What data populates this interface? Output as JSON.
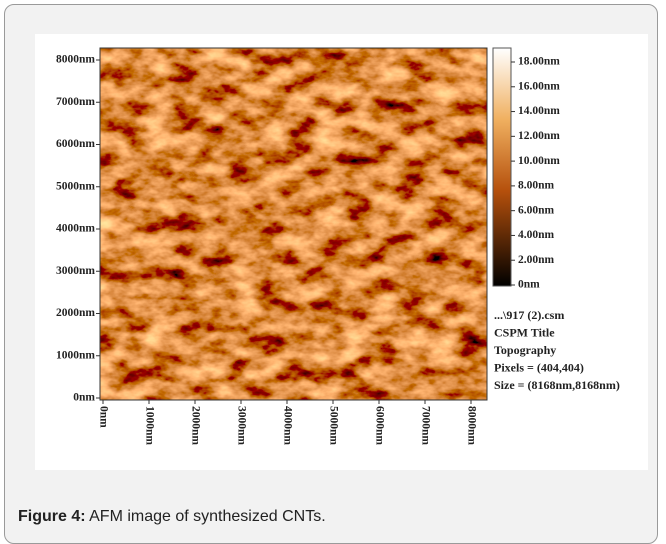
{
  "figure": {
    "y_labels": [
      "8000nm",
      "7000nm",
      "6000nm",
      "5000nm",
      "4000nm",
      "3000nm",
      "2000nm",
      "1000nm",
      "0nm"
    ],
    "x_labels": [
      "0nm",
      "1000nm",
      "2000nm",
      "3000nm",
      "4000nm",
      "5000nm",
      "6000nm",
      "7000nm",
      "8000nm"
    ],
    "colorbar_labels": [
      "18.00nm",
      "16.00nm",
      "14.00nm",
      "12.00nm",
      "10.00nm",
      "8.00nm",
      "6.00nm",
      "4.00nm",
      "2.00nm",
      "0nm"
    ],
    "info": [
      "...\\917 (2).csm",
      "CSPM Title",
      "Topography",
      "Pixels = (404,404)",
      "Size = (8168nm,8168nm)"
    ]
  },
  "caption": {
    "label": "Figure 4:",
    "text": "AFM image of synthesized CNTs."
  }
}
